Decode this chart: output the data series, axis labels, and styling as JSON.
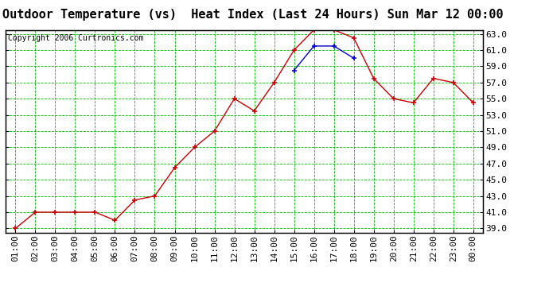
{
  "title": "Outdoor Temperature (vs)  Heat Index (Last 24 Hours) Sun Mar 12 00:00",
  "copyright": "Copyright 2006 Curtronics.com",
  "x_labels": [
    "01:00",
    "02:00",
    "03:00",
    "04:00",
    "05:00",
    "06:00",
    "07:00",
    "08:00",
    "09:00",
    "10:00",
    "11:00",
    "12:00",
    "13:00",
    "14:00",
    "15:00",
    "16:00",
    "17:00",
    "18:00",
    "19:00",
    "20:00",
    "21:00",
    "22:00",
    "23:00",
    "00:00"
  ],
  "temp_values": [
    39.0,
    41.0,
    41.0,
    41.0,
    41.0,
    40.0,
    42.5,
    43.0,
    46.5,
    49.0,
    51.0,
    55.0,
    53.5,
    57.0,
    61.0,
    63.5,
    63.5,
    62.5,
    57.5,
    55.0,
    54.5,
    57.5,
    57.0,
    54.5
  ],
  "heat_values": [
    null,
    null,
    null,
    null,
    null,
    null,
    null,
    null,
    null,
    null,
    null,
    null,
    null,
    null,
    58.5,
    61.5,
    61.5,
    60.0,
    null,
    null,
    null,
    null,
    null,
    null
  ],
  "temp_color": "#cc0000",
  "heat_color": "#0000cc",
  "bg_color": "#ffffff",
  "plot_bg_color": "#ffffff",
  "grid_color": "#00bb00",
  "ylim_min": 38.5,
  "ylim_max": 63.5,
  "yticks": [
    39.0,
    41.0,
    43.0,
    45.0,
    47.0,
    49.0,
    51.0,
    53.0,
    55.0,
    57.0,
    59.0,
    61.0,
    63.0
  ],
  "title_fontsize": 11,
  "copyright_fontsize": 7,
  "tick_fontsize": 8
}
